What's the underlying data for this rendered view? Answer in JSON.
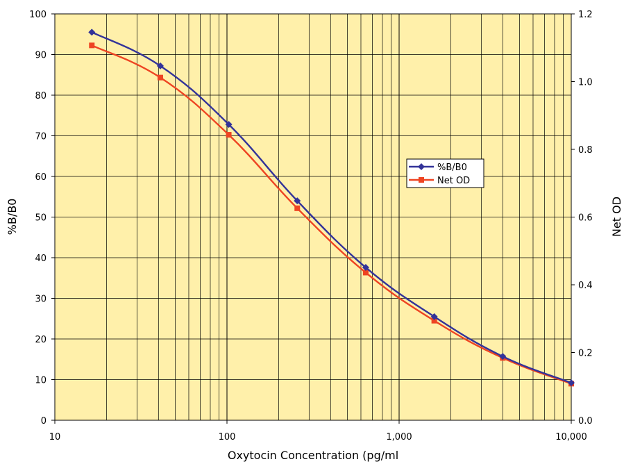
{
  "chart_data": {
    "type": "line",
    "xlabel": "Oxytocin Concentration (pg/ml",
    "ylabel": "%B/B0",
    "y2label": "Net OD",
    "x_scale": "log",
    "xlim": [
      10,
      10000
    ],
    "ylim": [
      0,
      100
    ],
    "y2lim": [
      0.0,
      1.2
    ],
    "x_tick_values": [
      10,
      100,
      1000,
      10000
    ],
    "x_tick_labels": [
      "10",
      "100",
      "1,000",
      "10,000"
    ],
    "y_tick_values": [
      0,
      10,
      20,
      30,
      40,
      50,
      60,
      70,
      80,
      90,
      100
    ],
    "y_tick_labels": [
      "0",
      "10",
      "20",
      "30",
      "40",
      "50",
      "60",
      "70",
      "80",
      "90",
      "100"
    ],
    "y2_tick_values": [
      0.0,
      0.2,
      0.4,
      0.6,
      0.8,
      1.0,
      1.2
    ],
    "y2_tick_labels": [
      "0.0",
      "0.2",
      "0.4",
      "0.6",
      "0.8",
      "1.0",
      "1.2"
    ],
    "grid": true,
    "legend_position": "center-right",
    "background_color": "#FFF0AA",
    "series": [
      {
        "name": "%B/B0",
        "axis": "left",
        "color": "#333399",
        "marker": "diamond",
        "x": [
          16.4,
          41,
          102.4,
          256,
          640,
          1600,
          4000,
          10000
        ],
        "y": [
          95.5,
          87.2,
          72.8,
          54.0,
          37.6,
          25.5,
          15.7,
          9.2
        ]
      },
      {
        "name": "Net OD",
        "axis": "right",
        "color": "#EE4422",
        "marker": "square",
        "x": [
          16.4,
          41,
          102.4,
          256,
          640,
          1600,
          4000,
          10000
        ],
        "y": [
          1.107,
          1.012,
          0.843,
          0.626,
          0.436,
          0.294,
          0.184,
          0.108
        ]
      }
    ]
  }
}
